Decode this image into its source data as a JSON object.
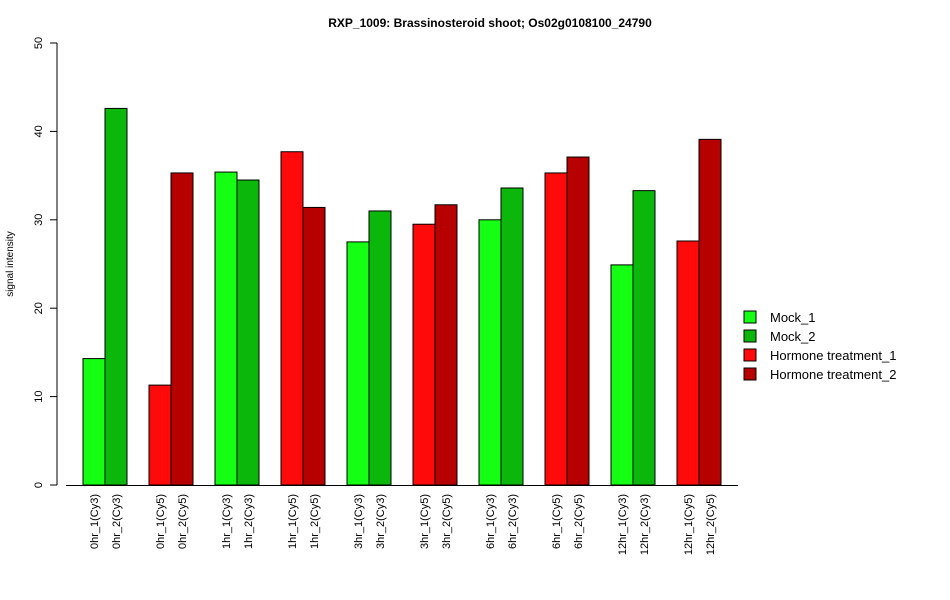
{
  "chart_data": {
    "type": "bar",
    "title": "RXP_1009: Brassinosteroid shoot; Os02g0108100_24790",
    "xlabel": "",
    "ylabel": "signal intensity",
    "ylim": [
      0,
      50
    ],
    "yticks": [
      0,
      10,
      20,
      30,
      40,
      50
    ],
    "grid": false,
    "legend_position": "right",
    "bars": [
      {
        "label": "0hr_1(Cy3)",
        "value": 14.3,
        "series": "Mock_1"
      },
      {
        "label": "0hr_2(Cy3)",
        "value": 42.6,
        "series": "Mock_2"
      },
      {
        "label": "0hr_1(Cy5)",
        "value": 11.3,
        "series": "Hormone treatment_1"
      },
      {
        "label": "0hr_2(Cy5)",
        "value": 35.3,
        "series": "Hormone treatment_2"
      },
      {
        "label": "1hr_1(Cy3)",
        "value": 35.4,
        "series": "Mock_1"
      },
      {
        "label": "1hr_2(Cy3)",
        "value": 34.5,
        "series": "Mock_2"
      },
      {
        "label": "1hr_1(Cy5)",
        "value": 37.7,
        "series": "Hormone treatment_1"
      },
      {
        "label": "1hr_2(Cy5)",
        "value": 31.4,
        "series": "Hormone treatment_2"
      },
      {
        "label": "3hr_1(Cy3)",
        "value": 27.5,
        "series": "Mock_1"
      },
      {
        "label": "3hr_2(Cy3)",
        "value": 31.0,
        "series": "Mock_2"
      },
      {
        "label": "3hr_1(Cy5)",
        "value": 29.5,
        "series": "Hormone treatment_1"
      },
      {
        "label": "3hr_2(Cy5)",
        "value": 31.7,
        "series": "Hormone treatment_2"
      },
      {
        "label": "6hr_1(Cy3)",
        "value": 30.0,
        "series": "Mock_1"
      },
      {
        "label": "6hr_2(Cy3)",
        "value": 33.6,
        "series": "Mock_2"
      },
      {
        "label": "6hr_1(Cy5)",
        "value": 35.3,
        "series": "Hormone treatment_1"
      },
      {
        "label": "6hr_2(Cy5)",
        "value": 37.1,
        "series": "Hormone treatment_2"
      },
      {
        "label": "12hr_1(Cy3)",
        "value": 24.9,
        "series": "Mock_1"
      },
      {
        "label": "12hr_2(Cy3)",
        "value": 33.3,
        "series": "Mock_2"
      },
      {
        "label": "12hr_1(Cy5)",
        "value": 27.6,
        "series": "Hormone treatment_1"
      },
      {
        "label": "12hr_2(Cy5)",
        "value": 39.1,
        "series": "Hormone treatment_2"
      }
    ],
    "legend": [
      {
        "name": "Mock_1",
        "color": "#14ff14"
      },
      {
        "name": "Mock_2",
        "color": "#0ab70a"
      },
      {
        "name": "Hormone treatment_1",
        "color": "#ff0a0a"
      },
      {
        "name": "Hormone treatment_2",
        "color": "#b70000"
      }
    ]
  }
}
